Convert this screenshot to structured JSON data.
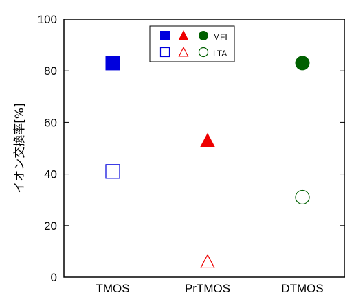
{
  "chart_data": {
    "type": "scatter",
    "categories": [
      "TMOS",
      "PrTMOS",
      "DTMOS"
    ],
    "ylabel": "イオン交換率[%]",
    "xlabel": "",
    "title": "",
    "ylim": [
      0,
      100
    ],
    "yticks": [
      "0",
      "20",
      "40",
      "60",
      "80",
      "100"
    ],
    "grid": false,
    "legend_position": "top-center",
    "series": [
      {
        "name": "MFI",
        "markers": [
          "filled-square",
          "filled-triangle",
          "filled-circle"
        ],
        "colors": [
          "#0000dd",
          "#ee0000",
          "#006000"
        ],
        "values": [
          83,
          53,
          83
        ]
      },
      {
        "name": "LTA",
        "markers": [
          "open-square",
          "open-triangle",
          "open-circle"
        ],
        "colors": [
          "#0000dd",
          "#ee0000",
          "#006000"
        ],
        "values": [
          41,
          6,
          31
        ]
      }
    ]
  }
}
